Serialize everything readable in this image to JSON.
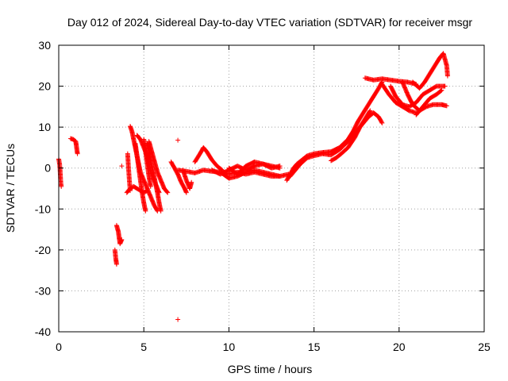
{
  "chart_data": {
    "type": "scatter",
    "title": "Day 012 of 2024, Sidereal Day-to-day VTEC variation (SDTVAR) for receiver msgr",
    "xlabel": "GPS time / hours",
    "ylabel": "SDTVAR / TECUs",
    "xlim": [
      0,
      25
    ],
    "ylim": [
      -40,
      30
    ],
    "xticks": [
      0,
      5,
      10,
      15,
      20,
      25
    ],
    "yticks": [
      30,
      20,
      10,
      0,
      -10,
      -20,
      -30,
      -40
    ],
    "grid": true,
    "marker": "+",
    "color": "#ff0000",
    "series": [
      {
        "name": "msgr",
        "segments": [
          [
            [
              0.0,
              2.2
            ],
            [
              0.05,
              1.0
            ],
            [
              0.08,
              -0.5
            ],
            [
              0.1,
              -2.0
            ],
            [
              0.12,
              -3.5
            ],
            [
              0.15,
              -4.5
            ]
          ],
          [
            [
              0.7,
              7.2
            ],
            [
              0.85,
              7.0
            ],
            [
              1.0,
              6.5
            ],
            [
              1.05,
              5.0
            ],
            [
              1.1,
              3.5
            ]
          ],
          [
            [
              3.3,
              -20
            ],
            [
              3.35,
              -22
            ],
            [
              3.4,
              -23.5
            ]
          ],
          [
            [
              3.4,
              -14
            ],
            [
              3.5,
              -15.5
            ],
            [
              3.55,
              -17
            ],
            [
              3.6,
              -18.5
            ],
            [
              3.7,
              -17.5
            ]
          ],
          [
            [
              3.7,
              0.5
            ]
          ],
          [
            [
              4.0,
              -6.0
            ],
            [
              4.2,
              -5.0
            ],
            [
              4.4,
              -4.5
            ],
            [
              4.6,
              -5.0
            ],
            [
              4.8,
              -5.5
            ],
            [
              5.0,
              -6.0
            ],
            [
              5.2,
              -5.5
            ]
          ],
          [
            [
              4.05,
              3.5
            ],
            [
              4.1,
              0
            ],
            [
              4.15,
              -3
            ],
            [
              4.2,
              -5.5
            ]
          ],
          [
            [
              4.2,
              10.2
            ],
            [
              4.3,
              9.0
            ],
            [
              4.4,
              7.0
            ],
            [
              4.5,
              5.0
            ],
            [
              4.6,
              3.0
            ],
            [
              4.7,
              1.0
            ],
            [
              4.8,
              -1.0
            ],
            [
              5.0,
              -3.0
            ],
            [
              5.2,
              -5.0
            ],
            [
              5.4,
              -7.0
            ],
            [
              5.6,
              -9.0
            ],
            [
              5.8,
              -10.5
            ]
          ],
          [
            [
              4.5,
              6.0
            ],
            [
              4.6,
              3.0
            ],
            [
              4.7,
              0
            ],
            [
              4.8,
              -3.0
            ],
            [
              4.9,
              -6.0
            ],
            [
              5.0,
              -8.5
            ],
            [
              5.1,
              -10.5
            ]
          ],
          [
            [
              4.6,
              8.0
            ],
            [
              4.8,
              7.0
            ],
            [
              5.0,
              5.0
            ],
            [
              5.2,
              3.0
            ],
            [
              5.3,
              0.5
            ],
            [
              5.5,
              -2.0
            ],
            [
              5.7,
              -4.0
            ],
            [
              5.9,
              -6.0
            ]
          ],
          [
            [
              5.0,
              7.0
            ],
            [
              5.1,
              4.0
            ],
            [
              5.2,
              1.0
            ],
            [
              5.3,
              -2.0
            ],
            [
              5.4,
              -4.5
            ]
          ],
          [
            [
              5.2,
              6.0
            ],
            [
              5.3,
              4.0
            ],
            [
              5.4,
              2.0
            ],
            [
              5.5,
              0
            ],
            [
              5.6,
              -2.0
            ],
            [
              5.7,
              -4.0
            ],
            [
              5.8,
              -6.0
            ],
            [
              5.9,
              -8.5
            ],
            [
              6.0,
              -10.5
            ]
          ],
          [
            [
              5.3,
              6.5
            ],
            [
              5.4,
              5.0
            ],
            [
              5.5,
              3.5
            ],
            [
              5.6,
              2.0
            ],
            [
              5.7,
              0.5
            ],
            [
              5.8,
              -1.0
            ],
            [
              6.0,
              -3.0
            ],
            [
              6.2,
              -5.0
            ],
            [
              6.4,
              -6.0
            ]
          ],
          [
            [
              6.6,
              1.5
            ],
            [
              6.8,
              0
            ],
            [
              7.0,
              -1.5
            ],
            [
              7.2,
              -3.5
            ],
            [
              7.4,
              -5.0
            ],
            [
              7.5,
              -6.0
            ]
          ],
          [
            [
              7.0,
              6.8
            ]
          ],
          [
            [
              7.0,
              -37
            ]
          ],
          [
            [
              7.3,
              -0.5
            ],
            [
              7.5,
              -3.0
            ],
            [
              7.7,
              -5.0
            ],
            [
              7.8,
              -3.5
            ]
          ],
          [
            [
              7.0,
              -0.5
            ],
            [
              7.5,
              -0.8
            ],
            [
              8.0,
              -1.2
            ],
            [
              8.5,
              -0.5
            ],
            [
              9.0,
              -0.8
            ],
            [
              9.5,
              -1.0
            ],
            [
              10.0,
              -1.5
            ],
            [
              10.5,
              -1.0
            ],
            [
              11.0,
              -1.5
            ],
            [
              11.5,
              -1.0
            ],
            [
              12.0,
              -1.5
            ],
            [
              12.5,
              -2.0
            ],
            [
              13.0,
              -2.0
            ],
            [
              13.5,
              -1.5
            ]
          ],
          [
            [
              8.0,
              1.5
            ],
            [
              8.3,
              3.5
            ],
            [
              8.5,
              5.0
            ],
            [
              8.7,
              4.0
            ],
            [
              9.0,
              2.0
            ],
            [
              9.3,
              0.5
            ],
            [
              9.6,
              -0.5
            ]
          ],
          [
            [
              9.0,
              -0.5
            ],
            [
              9.5,
              -1.5
            ],
            [
              10.0,
              -0.5
            ],
            [
              10.5,
              0.5
            ],
            [
              11.0,
              -0.5
            ],
            [
              11.5,
              0.5
            ],
            [
              12.0,
              1.0
            ],
            [
              12.5,
              0.0
            ],
            [
              13.0,
              0.5
            ]
          ],
          [
            [
              9.5,
              -1.0
            ],
            [
              10.0,
              -2.5
            ],
            [
              10.5,
              -2.0
            ],
            [
              11.0,
              -1.0
            ],
            [
              11.5,
              -0.5
            ],
            [
              12.0,
              -1.0
            ],
            [
              12.5,
              -1.5
            ],
            [
              13.0,
              -2.0
            ]
          ],
          [
            [
              10.0,
              0
            ],
            [
              10.5,
              -1.5
            ],
            [
              11.0,
              0.5
            ],
            [
              11.5,
              1.5
            ],
            [
              12.0,
              1.0
            ],
            [
              12.5,
              0.5
            ],
            [
              13.0,
              0
            ]
          ],
          [
            [
              13.4,
              -3.0
            ],
            [
              13.6,
              -1.5
            ],
            [
              13.8,
              0
            ],
            [
              14.0,
              1.0
            ],
            [
              14.3,
              2.0
            ],
            [
              14.6,
              3.0
            ],
            [
              15.0,
              3.5
            ],
            [
              15.5,
              3.8
            ],
            [
              16.0,
              4.0
            ],
            [
              16.5,
              5.0
            ],
            [
              17.0,
              7.0
            ],
            [
              17.3,
              9.0
            ],
            [
              17.6,
              11.5
            ],
            [
              17.9,
              13.5
            ],
            [
              18.2,
              15.5
            ],
            [
              18.5,
              17.5
            ],
            [
              18.8,
              19.5
            ],
            [
              19.0,
              21.0
            ]
          ],
          [
            [
              13.6,
              -2.0
            ],
            [
              13.9,
              -0.5
            ],
            [
              14.2,
              1.0
            ],
            [
              14.6,
              2.5
            ],
            [
              15.0,
              3.0
            ],
            [
              15.5,
              3.5
            ],
            [
              16.0,
              3.2
            ],
            [
              16.5,
              4.5
            ],
            [
              17.0,
              6.5
            ],
            [
              17.4,
              8.5
            ],
            [
              17.8,
              10.5
            ],
            [
              18.2,
              12.5
            ],
            [
              18.5,
              13.5
            ],
            [
              18.8,
              12.5
            ],
            [
              19.0,
              11.0
            ]
          ],
          [
            [
              16.0,
              1.8
            ],
            [
              16.3,
              2.5
            ],
            [
              16.6,
              3.5
            ],
            [
              17.0,
              5.0
            ],
            [
              17.4,
              7.5
            ],
            [
              17.7,
              10.0
            ],
            [
              18.0,
              12.0
            ],
            [
              18.3,
              14.0
            ]
          ],
          [
            [
              18.0,
              22.0
            ],
            [
              18.5,
              21.5
            ],
            [
              19.0,
              21.8
            ],
            [
              19.5,
              21.5
            ],
            [
              20.0,
              21.2
            ],
            [
              20.5,
              21.0
            ],
            [
              21.0,
              20.5
            ]
          ],
          [
            [
              19.0,
              20.5
            ],
            [
              19.4,
              18.0
            ],
            [
              19.8,
              16.0
            ],
            [
              20.2,
              15.0
            ],
            [
              20.6,
              14.0
            ],
            [
              21.0,
              13.5
            ]
          ],
          [
            [
              19.5,
              20.0
            ],
            [
              19.8,
              17.5
            ],
            [
              20.2,
              15.5
            ],
            [
              20.6,
              15.0
            ],
            [
              21.0,
              16.0
            ],
            [
              21.4,
              18.0
            ],
            [
              21.8,
              19.0
            ],
            [
              22.2,
              20.0
            ],
            [
              22.7,
              20.0
            ]
          ],
          [
            [
              20.2,
              21.0
            ],
            [
              20.5,
              18.0
            ],
            [
              20.8,
              15.5
            ],
            [
              21.2,
              14.0
            ],
            [
              21.6,
              15.0
            ],
            [
              22.0,
              15.5
            ],
            [
              22.5,
              15.5
            ],
            [
              22.8,
              15.2
            ]
          ],
          [
            [
              20.8,
              21.0
            ],
            [
              21.2,
              19.5
            ],
            [
              21.5,
              21.0
            ],
            [
              21.8,
              23.0
            ],
            [
              22.1,
              25.0
            ],
            [
              22.4,
              27.0
            ],
            [
              22.6,
              28.0
            ],
            [
              22.8,
              25.0
            ],
            [
              22.85,
              22.5
            ]
          ],
          [
            [
              21.0,
              13.0
            ],
            [
              21.4,
              15.0
            ],
            [
              21.8,
              17.0
            ],
            [
              22.2,
              18.0
            ],
            [
              22.5,
              19.0
            ]
          ]
        ]
      }
    ]
  }
}
